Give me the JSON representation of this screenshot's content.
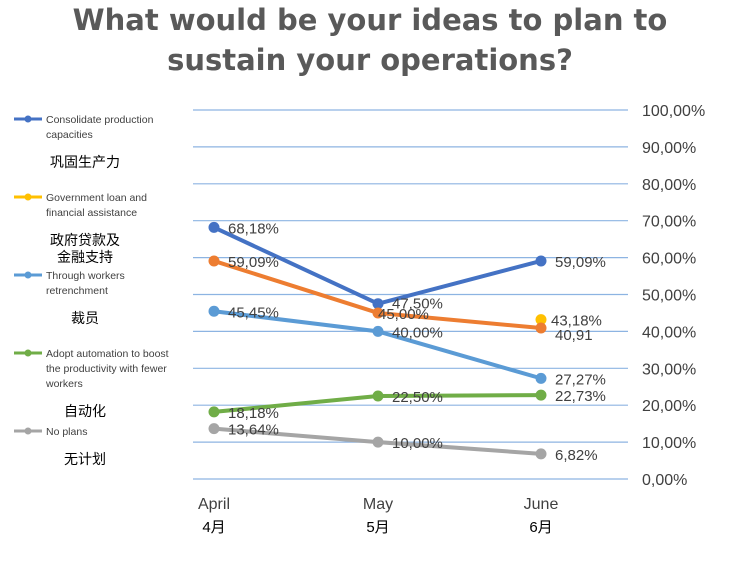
{
  "title_line1": "What would be your ideas to plan to",
  "title_line2": "sustain your operations?",
  "chart_data": {
    "type": "line",
    "title": "What would be your ideas to plan to sustain your operations?",
    "categories": [
      "April",
      "May",
      "June"
    ],
    "categories_zh": [
      "4月",
      "5月",
      "6月"
    ],
    "y_ticks": [
      "0,00%",
      "10,00%",
      "20,00%",
      "30,00%",
      "40,00%",
      "50,00%",
      "60,00%",
      "70,00%",
      "80,00%",
      "90,00%",
      "100,00%"
    ],
    "ylim": [
      0,
      100
    ],
    "grid": true,
    "legend_position": "left",
    "series": [
      {
        "name": "Consolidate production capacities",
        "name_zh": "巩固生产力",
        "color": "#4472C4",
        "values": [
          68.18,
          47.5,
          59.09
        ],
        "labels": [
          "68,18%",
          "47,50%",
          "59,09%"
        ]
      },
      {
        "name": "Government loan and financial assistance",
        "name_zh": "政府贷款及 金融支持",
        "color": "#FFC000",
        "values": [
          null,
          null,
          43.18
        ],
        "labels": [
          "",
          "",
          "43,18%"
        ]
      },
      {
        "name": "",
        "name_zh": "",
        "color": "#ED7D31",
        "values": [
          59.09,
          45.0,
          40.91
        ],
        "labels": [
          "59,09%",
          "45,00%",
          "40,91"
        ]
      },
      {
        "name": "Through workers retrenchment",
        "name_zh": "裁员",
        "color": "#5B9BD5",
        "values": [
          45.45,
          40.0,
          27.27
        ],
        "labels": [
          "45,45%",
          "40,00%",
          "27,27%"
        ]
      },
      {
        "name": "Adopt automation to boost the productivity with fewer workers",
        "name_zh": "自动化",
        "color": "#70AD47",
        "values": [
          18.18,
          22.5,
          22.73
        ],
        "labels": [
          "18,18%",
          "22,50%",
          "22,73%"
        ]
      },
      {
        "name": "No plans",
        "name_zh": "无计划",
        "color": "#A5A5A5",
        "values": [
          13.64,
          10.0,
          6.82
        ],
        "labels": [
          "13,64%",
          "10,00%",
          "6,82%"
        ]
      }
    ]
  },
  "legend": [
    {
      "color": "#4472C4",
      "lines": [
        "Consolidate production",
        "capacities"
      ],
      "zh": [
        "巩固生产力"
      ]
    },
    {
      "color": "#FFC000",
      "lines": [
        "Government loan and",
        "financial assistance"
      ],
      "zh": [
        "政府贷款及",
        "金融支持"
      ]
    },
    {
      "color": "#5B9BD5",
      "lines": [
        "Through workers",
        "retrenchment"
      ],
      "zh": [
        "裁员"
      ]
    },
    {
      "color": "#70AD47",
      "lines": [
        "Adopt automation to boost",
        "the productivity with fewer",
        "workers"
      ],
      "zh": [
        "自动化"
      ]
    },
    {
      "color": "#A5A5A5",
      "lines": [
        "No plans"
      ],
      "zh": [
        "无计划"
      ]
    }
  ]
}
